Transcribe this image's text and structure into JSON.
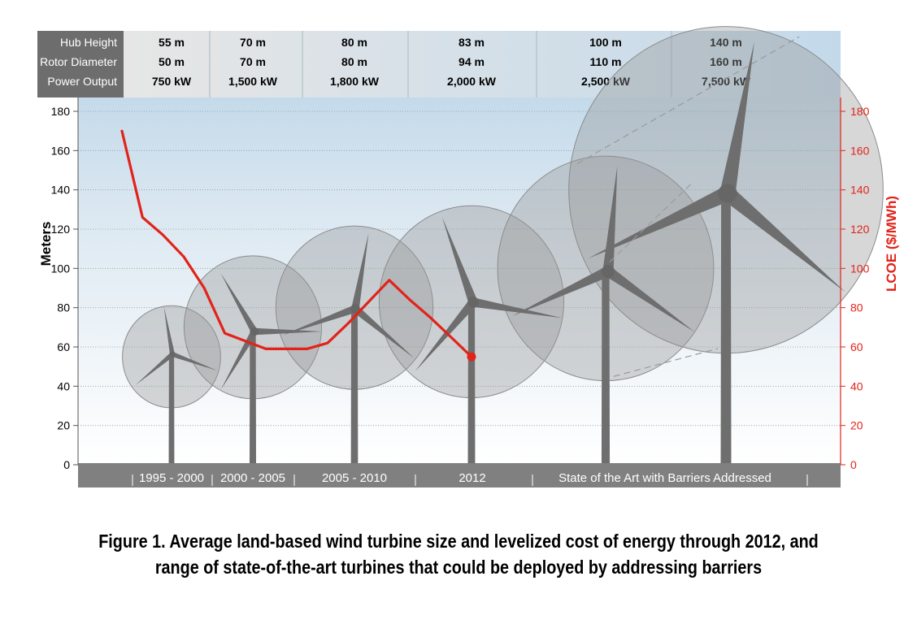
{
  "chart_data": {
    "type": "line",
    "header_rows": [
      {
        "label": "Hub Height",
        "values": [
          "55 m",
          "70 m",
          "80 m",
          "83 m",
          "100 m",
          "140 m"
        ]
      },
      {
        "label": "Rotor Diameter",
        "values": [
          "50 m",
          "70 m",
          "80 m",
          "94 m",
          "110 m",
          "160 m"
        ]
      },
      {
        "label": "Power Output",
        "values": [
          "750 kW",
          "1,500 kW",
          "1,800 kW",
          "2,000 kW",
          "2,500 kW",
          "7,500 kW"
        ]
      }
    ],
    "categories": [
      "1995 - 2000",
      "2000 - 2005",
      "2005 - 2010",
      "2012",
      "State of the Art with Barriers Addressed"
    ],
    "ylabel": "Meters",
    "y2label": "LCOE ($/MWh)",
    "ylim": [
      0,
      180
    ],
    "y2lim": [
      0,
      180
    ],
    "yticks": [
      0,
      20,
      40,
      60,
      80,
      100,
      120,
      140,
      160,
      180
    ],
    "y2ticks": [
      0,
      20,
      40,
      60,
      80,
      100,
      120,
      140,
      160,
      180
    ],
    "grid": true,
    "turbines": [
      {
        "hub_height": 55,
        "rotor_diameter": 50
      },
      {
        "hub_height": 70,
        "rotor_diameter": 70
      },
      {
        "hub_height": 80,
        "rotor_diameter": 80
      },
      {
        "hub_height": 83,
        "rotor_diameter": 94
      },
      {
        "hub_height": 100,
        "rotor_diameter": 110
      },
      {
        "hub_height": 140,
        "rotor_diameter": 160
      }
    ],
    "series": [
      {
        "name": "LCOE ($/MWh)",
        "color": "#e2231a",
        "x": [
          1995,
          1996,
          1997,
          1998,
          1999,
          2000,
          2001,
          2002,
          2003,
          2004,
          2005,
          2006,
          2007,
          2008,
          2009,
          2010,
          2011,
          2012
        ],
        "values": [
          170,
          126,
          117,
          106,
          90,
          67,
          63,
          59,
          59,
          59,
          62,
          72,
          83,
          94,
          84,
          75,
          65,
          55
        ]
      }
    ]
  },
  "caption": {
    "line1": "Figure 1. Average land-based wind turbine size and levelized cost of energy through 2012, and",
    "line2": "range of state-of-the-art turbines that could be deployed by addressing barriers"
  },
  "colors": {
    "lcoe_line": "#e2231a",
    "turbine": "#6a6a6a",
    "header_bg": "#d9d9d9",
    "label_bg": "#6d6d6d",
    "axis_band": "#808080"
  }
}
